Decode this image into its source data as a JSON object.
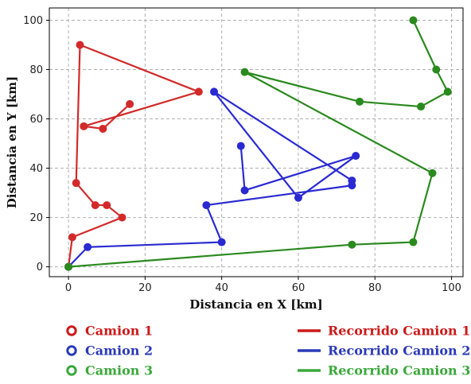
{
  "chart_data": {
    "type": "line",
    "xlabel": "Distancia en X [km]",
    "ylabel": "Distancia en Y [km]",
    "xlim": [
      -5,
      103
    ],
    "ylim": [
      -4,
      105
    ],
    "xticks": [
      0,
      20,
      40,
      60,
      80,
      100
    ],
    "yticks": [
      0,
      20,
      40,
      60,
      80,
      100
    ],
    "grid": true,
    "legend_placement": "below",
    "series": [
      {
        "name": "Camion 1",
        "route_name": "Recorrido Camion 1",
        "color": "#d22a2a",
        "legend_color": "#cc1a1a",
        "points": [
          [
            0,
            0
          ],
          [
            1,
            12
          ],
          [
            14,
            20
          ],
          [
            10,
            25
          ],
          [
            7,
            25
          ],
          [
            2,
            34
          ],
          [
            3,
            90
          ],
          [
            34,
            71
          ],
          [
            4,
            57
          ],
          [
            9,
            56
          ],
          [
            16,
            66
          ]
        ]
      },
      {
        "name": "Camion 2",
        "route_name": "Recorrido Camion 2",
        "color": "#2a2ad2",
        "legend_color": "#2a3ab8",
        "points": [
          [
            0,
            0
          ],
          [
            5,
            8
          ],
          [
            40,
            10
          ],
          [
            36,
            25
          ],
          [
            74,
            33
          ],
          [
            74,
            35
          ],
          [
            38,
            71
          ],
          [
            60,
            28
          ],
          [
            75,
            45
          ],
          [
            46,
            31
          ],
          [
            45,
            49
          ]
        ]
      },
      {
        "name": "Camion 3",
        "route_name": "Recorrido Camion 3",
        "color": "#2a8a1e",
        "legend_color": "#3aa83a",
        "points": [
          [
            0,
            0
          ],
          [
            74,
            9
          ],
          [
            90,
            10
          ],
          [
            95,
            38
          ],
          [
            46,
            79
          ],
          [
            76,
            67
          ],
          [
            92,
            65
          ],
          [
            99,
            71
          ],
          [
            96,
            80
          ],
          [
            90,
            100
          ]
        ]
      }
    ]
  }
}
